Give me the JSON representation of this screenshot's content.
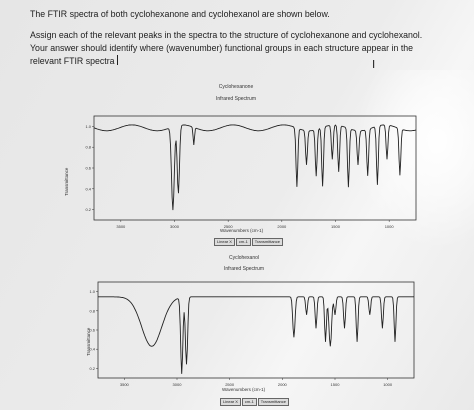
{
  "prompt": {
    "line1": "The FTIR spectra of both cyclohexanone and cyclohexanol are shown below.",
    "line2": "Assign each of the relevant peaks in the spectra to the structure of cyclohexanone and cyclohexanol.",
    "line3": "Your answer should identify where (wavenumber) functional groups in each structure appear in the",
    "line4": "relevant FTIR spectra"
  },
  "chart_data": [
    {
      "type": "line",
      "title": "Cyclohexanone",
      "subtitle": "Infrared Spectrum",
      "xlabel": "Wavenumbers (cm-1)",
      "ylabel": "Transmittance",
      "x_ticks": [
        "3500",
        "3000",
        "2500",
        "2000",
        "1500",
        "1000"
      ],
      "y_ticks": [
        "1.0",
        "0.8",
        "0.6",
        "0.4",
        "0.2"
      ],
      "grid": false,
      "controls": [
        "Linear X",
        "cm-1",
        "Transmittance"
      ]
    },
    {
      "type": "line",
      "title": "Cyclohexanol",
      "subtitle": "Infrared Spectrum",
      "xlabel": "Wavenumbers (cm-1)",
      "ylabel": "Transmittance",
      "x_ticks": [
        "3500",
        "3000",
        "2500",
        "2000",
        "1500",
        "1000"
      ],
      "y_ticks": [
        "1.0",
        "0.8",
        "0.6",
        "0.4",
        "0.2"
      ],
      "grid": false,
      "controls": [
        "Linear X",
        "cm-1",
        "Transmittance"
      ]
    }
  ]
}
